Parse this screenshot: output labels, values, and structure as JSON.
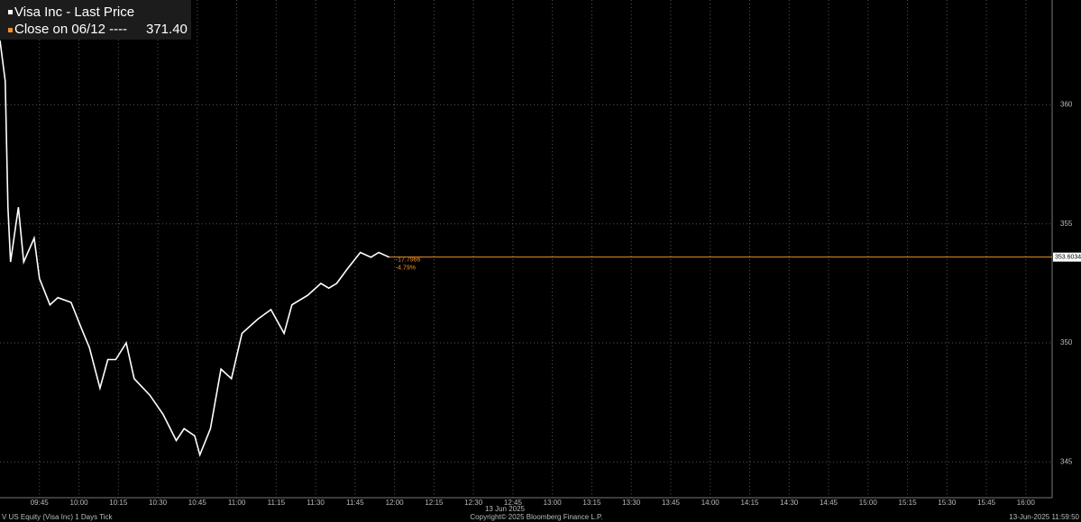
{
  "chart_data": {
    "type": "line",
    "series": [
      {
        "name": "Visa Inc - Last Price",
        "color": "#ffffff",
        "x": [
          "09:30",
          "09:32",
          "09:33",
          "09:34",
          "09:37",
          "09:39",
          "09:43",
          "09:45",
          "09:49",
          "09:52",
          "09:57",
          "10:01",
          "10:04",
          "10:08",
          "10:11",
          "10:14",
          "10:18",
          "10:21",
          "10:27",
          "10:32",
          "10:37",
          "10:40",
          "10:44",
          "10:46",
          "10:50",
          "10:54",
          "10:58",
          "11:02",
          "11:08",
          "11:13",
          "11:18",
          "11:21",
          "11:27",
          "11:32",
          "11:35",
          "11:38",
          "11:42",
          "11:47",
          "11:51",
          "11:54",
          "11:58"
        ],
        "values": [
          362.7,
          361.0,
          355.7,
          353.4,
          355.7,
          353.4,
          354.4,
          352.7,
          351.6,
          351.9,
          351.7,
          350.6,
          349.8,
          348.1,
          349.3,
          349.3,
          350.0,
          348.5,
          347.8,
          347.0,
          345.9,
          346.4,
          346.1,
          345.3,
          346.4,
          348.9,
          348.5,
          350.4,
          351.0,
          351.4,
          350.4,
          351.6,
          352.0,
          352.5,
          352.3,
          352.5,
          353.1,
          353.8,
          353.6,
          353.8,
          353.6
        ]
      },
      {
        "name": "Close on 06/12 ----",
        "color": "#f0902a",
        "value": 371.4,
        "value_label": "371.40"
      }
    ],
    "last_price": {
      "value": 353.6034,
      "color": "#f0902a",
      "annotations": [
        "-17.7966",
        "-4.79%"
      ]
    },
    "xlim": [
      "09:30",
      "16:10"
    ],
    "xticks": [
      "09:45",
      "10:00",
      "10:15",
      "10:30",
      "10:45",
      "11:00",
      "11:15",
      "11:30",
      "11:45",
      "12:00",
      "12:15",
      "12:30",
      "12:45",
      "13:00",
      "13:15",
      "13:30",
      "13:45",
      "14:00",
      "14:15",
      "14:30",
      "14:45",
      "15:00",
      "15:15",
      "15:30",
      "15:45",
      "16:00"
    ],
    "x_label": "13 Jun 2025",
    "ylim": [
      343.5,
      364.4
    ],
    "yticks": [
      345,
      350,
      355,
      360
    ],
    "grid": true,
    "footer": {
      "left": "V US Equity (Visa Inc) 1 Days  Tick",
      "center": "Copyright© 2025 Bloomberg Finance L.P.",
      "right": "13-Jun-2025 11:59:50"
    }
  }
}
